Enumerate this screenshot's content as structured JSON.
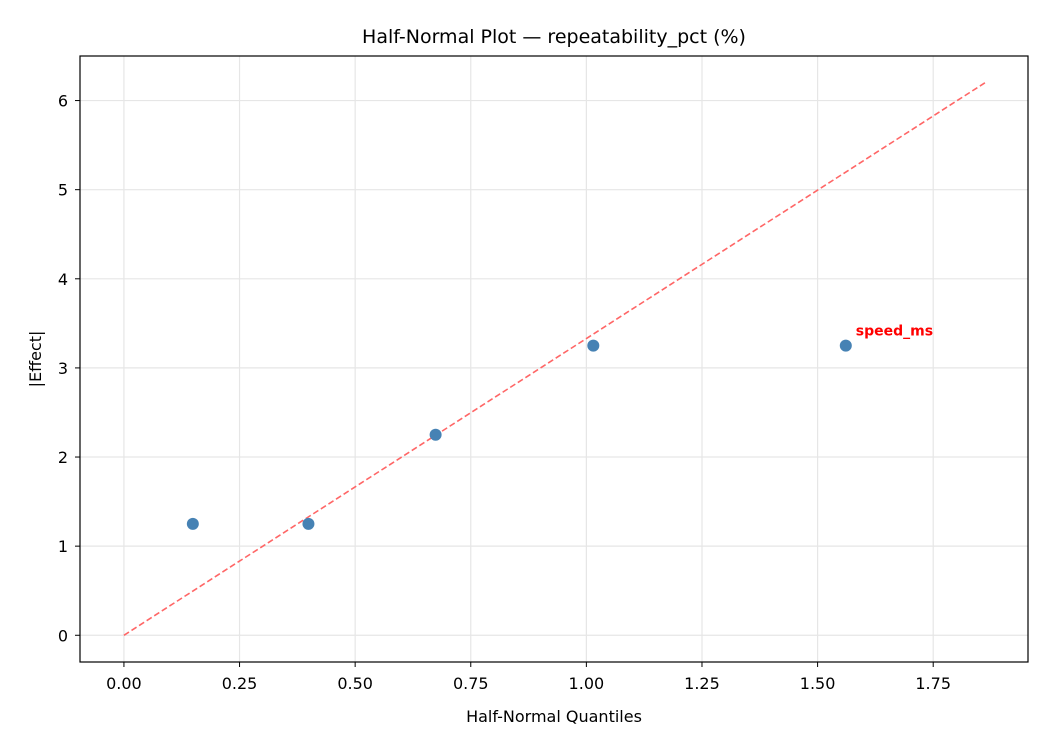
{
  "chart_data": {
    "type": "scatter",
    "title": "Half-Normal Plot — repeatability_pct (%)",
    "xlabel": "Half-Normal Quantiles",
    "ylabel": "|Effect|",
    "xlim": [
      -0.095,
      1.955
    ],
    "ylim": [
      -0.3,
      6.5
    ],
    "xticks": [
      "0.00",
      "0.25",
      "0.50",
      "0.75",
      "1.00",
      "1.25",
      "1.50",
      "1.75"
    ],
    "xtick_values": [
      0,
      0.25,
      0.5,
      0.75,
      1.0,
      1.25,
      1.5,
      1.75
    ],
    "yticks": [
      "0",
      "1",
      "2",
      "3",
      "4",
      "5",
      "6"
    ],
    "ytick_values": [
      0,
      1,
      2,
      3,
      4,
      5,
      6
    ],
    "grid": true,
    "points": [
      {
        "x": 0.149,
        "y": 1.25
      },
      {
        "x": 0.399,
        "y": 1.25
      },
      {
        "x": 0.674,
        "y": 2.25
      },
      {
        "x": 1.015,
        "y": 3.25
      },
      {
        "x": 1.561,
        "y": 3.25,
        "label": "speed_ms"
      }
    ],
    "reference_line": {
      "x": [
        0,
        1.862
      ],
      "y": [
        0,
        6.2
      ],
      "style": "dashed"
    },
    "colors": {
      "points": "#4682b4",
      "line": "#ff6666",
      "label": "#ff0000",
      "grid": "#e6e6e6"
    }
  }
}
